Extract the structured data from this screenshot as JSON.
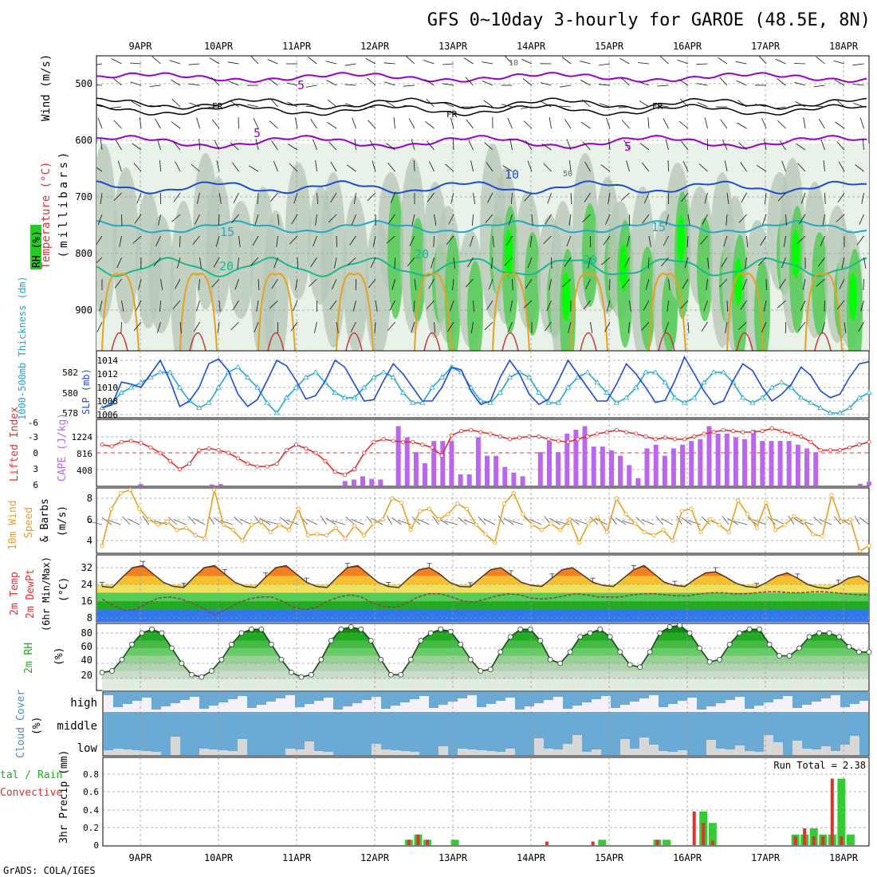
{
  "title": "GFS 0~10day 3-hourly for GAROE (48.5E, 8N)",
  "credit": "GrADS: COLA/IGES",
  "dates": [
    "9APR",
    "10APR",
    "11APR",
    "12APR",
    "13APR",
    "14APR",
    "15APR",
    "16APR",
    "17APR",
    "18APR"
  ],
  "colors": {
    "green": "#33cc33",
    "bright_green": "#00ff00",
    "purple": "#9900cc",
    "blue": "#1e4bd2",
    "cyan": "#22a8c8",
    "red": "#e03030",
    "orange": "#e8a020",
    "cape": "#bb66ee",
    "cloud": "#6aaad4",
    "grey": "#cccccc"
  },
  "panels": {
    "upper": {
      "ylabel_wind": "Wind (m/s)",
      "ylabel_temp": "Temperature (°C)",
      "ylabel_rh": "RH (%)",
      "ylabel_mb": "(millibars)",
      "ticks": [
        "500",
        "600",
        "700",
        "800",
        "900"
      ],
      "contour_labels": [
        "5",
        "5",
        "5",
        "FR",
        "FR",
        "FR",
        "10",
        "15",
        "15",
        "20",
        "20",
        "50",
        "10"
      ]
    },
    "slp": {
      "ylabel_left": "1000-500mb Thickness (dm)",
      "ylabel_right": "SLP (mb)",
      "ticks_left": [
        "582",
        "580",
        "578"
      ],
      "ticks_right": [
        "1014",
        "1012",
        "1010",
        "1008",
        "1006"
      ]
    },
    "cape": {
      "ylabel_left": "Lifted Index",
      "ylabel_right": "CAPE (J/kg)",
      "ticks_left": [
        "-6",
        "-3",
        "0",
        "3",
        "6"
      ],
      "ticks_right": [
        "1224",
        "816",
        "408"
      ]
    },
    "wind": {
      "ylabel": [
        "10m Wind",
        "Speed",
        "& Barbs",
        "(m/s)"
      ],
      "ticks": [
        "8",
        "6",
        "4"
      ]
    },
    "temp": {
      "ylabel": [
        "2m Temp",
        "2m DewPt",
        "(6hr Min/Max)",
        "(°C)"
      ],
      "ticks": [
        "32",
        "24",
        "16",
        "8"
      ]
    },
    "rh": {
      "ylabel": [
        "2m RH",
        "(%)"
      ],
      "ticks": [
        "80",
        "60",
        "40",
        "20"
      ]
    },
    "cloud": {
      "ylabel": [
        "Cloud Cover",
        "(%)"
      ],
      "layers": [
        "high",
        "middle",
        "low"
      ]
    },
    "precip": {
      "ylabel_left": [
        "tal / Rain",
        "Convective"
      ],
      "ylabel": "3hr Precip (mm)",
      "ticks": [
        "0.8",
        "0.6",
        "0.4",
        "0.2",
        "0"
      ],
      "run_total": "Run Total = 2.38"
    }
  },
  "chart_data": {
    "type": "meteogram",
    "x_dates": [
      "9APR",
      "10APR",
      "11APR",
      "12APR",
      "13APR",
      "14APR",
      "15APR",
      "16APR",
      "17APR",
      "18APR"
    ],
    "slp_mb": [
      1007.0,
      1007.4,
      1010.8,
      1010.5,
      1010.0,
      1012.0,
      1014.0,
      1011.0,
      1007.2,
      1008.0,
      1010.0,
      1013.5,
      1014.2,
      1012.5,
      1009.0,
      1007.2,
      1008.2,
      1011.0,
      1014.0,
      1013.2,
      1011.0,
      1008.3,
      1008.8,
      1011.0,
      1014.0,
      1013.0,
      1010.5,
      1008.0,
      1008.2,
      1011.0,
      1013.5,
      1012.0,
      1010.0,
      1008.0,
      1008.0,
      1010.0,
      1013.0,
      1012.6,
      1009.5,
      1007.5,
      1008.0,
      1011.5,
      1014.0,
      1012.0,
      1009.0,
      1007.5,
      1008.3,
      1011.0,
      1014.0,
      1012.0,
      1010.0,
      1008.0,
      1008.0,
      1010.5,
      1013.5,
      1012.0,
      1010.0,
      1007.8,
      1008.1,
      1011.0,
      1014.5,
      1012.0,
      1009.5,
      1007.5,
      1008.0,
      1011.0,
      1013.5,
      1012.5,
      1010.0,
      1008.0,
      1009.0,
      1010.5,
      1013.0,
      1011.8,
      1009.5,
      1008.5,
      1009.0,
      1011.5,
      1013.5,
      1013.8
    ],
    "thickness_dm": [
      578.5,
      579.0,
      580.0,
      580.5,
      581.0,
      581.5,
      582.0,
      582.0,
      580.5,
      579.2,
      578.5,
      579.0,
      580.5,
      582.0,
      582.5,
      581.5,
      580.5,
      579.0,
      578.0,
      579.5,
      580.5,
      581.5,
      582.0,
      581.0,
      580.0,
      579.5,
      579.5,
      580.5,
      581.5,
      582.0,
      581.5,
      580.0,
      579.0,
      579.0,
      580.5,
      581.5,
      582.5,
      582.0,
      580.5,
      579.2,
      579.0,
      580.0,
      581.5,
      582.0,
      581.5,
      580.0,
      579.0,
      579.0,
      580.5,
      581.5,
      582.0,
      581.0,
      580.0,
      579.0,
      579.5,
      580.5,
      582.0,
      582.0,
      581.0,
      579.5,
      579.0,
      579.5,
      581.0,
      582.0,
      582.0,
      581.0,
      579.5,
      579.0,
      579.5,
      580.5,
      581.0,
      580.5,
      579.5,
      579.0,
      578.5,
      578.0,
      578.0,
      578.5,
      579.5,
      580.0
    ],
    "lifted_index": [
      -1.5,
      -1.2,
      -2.0,
      -2.2,
      -1.8,
      -1.0,
      0.0,
      1.5,
      3.0,
      2.0,
      -0.5,
      -0.8,
      -0.5,
      0.0,
      1.0,
      2.0,
      2.5,
      2.5,
      2.0,
      -0.5,
      -1.5,
      -0.8,
      0.0,
      1.5,
      3.5,
      4.0,
      3.0,
      0.0,
      -2.0,
      -2.5,
      -2.2,
      -2.0,
      -2.0,
      -1.5,
      -1.0,
      0.5,
      -3.2,
      -4.0,
      -4.2,
      -3.8,
      -3.5,
      -3.0,
      -2.5,
      -2.8,
      -3.0,
      -3.0,
      -2.5,
      -2.2,
      -2.0,
      -2.5,
      -3.0,
      -3.5,
      -3.8,
      -4.2,
      -3.8,
      -3.5,
      -3.0,
      -2.5,
      -2.8,
      -2.5,
      -2.5,
      -3.0,
      -3.5,
      -3.8,
      -4.2,
      -4.0,
      -3.8,
      -3.8,
      -4.0,
      -4.5,
      -4.0,
      -3.5,
      -3.0,
      -2.0,
      -0.5,
      -0.5,
      -0.5,
      -1.0,
      -1.5,
      -2.0
    ],
    "cape_jkg": [
      0,
      0,
      0,
      0,
      40,
      0,
      0,
      0,
      0,
      0,
      0,
      0,
      30,
      40,
      0,
      0,
      0,
      0,
      0,
      0,
      0,
      0,
      0,
      0,
      0,
      0,
      0,
      120,
      160,
      250,
      180,
      160,
      0,
      1600,
      1300,
      900,
      600,
      1200,
      1200,
      1200,
      300,
      300,
      1300,
      800,
      800,
      500,
      350,
      250,
      0,
      900,
      1200,
      900,
      1400,
      1500,
      1600,
      1050,
      1050,
      950,
      800,
      550,
      200,
      1000,
      1100,
      800,
      1000,
      1100,
      1200,
      1250,
      1600,
      1400,
      1400,
      1300,
      1250,
      1500,
      1200,
      1200,
      1200,
      1200,
      1100,
      1000,
      900,
      0,
      0,
      0,
      0,
      50,
      100
    ],
    "wind10m_ms": [
      3.5,
      7.0,
      8.5,
      8.8,
      7.0,
      6.0,
      5.5,
      5.8,
      5.0,
      5.2,
      4.5,
      4.2,
      8.8,
      5.5,
      5.0,
      4.0,
      5.5,
      5.8,
      4.8,
      5.5,
      5.0,
      7.0,
      4.5,
      4.6,
      4.5,
      5.2,
      4.2,
      5.4,
      4.5,
      5.6,
      6.0,
      8.0,
      7.6,
      5.0,
      6.8,
      7.0,
      6.0,
      6.5,
      7.5,
      7.0,
      5.5,
      4.6,
      3.8,
      7.5,
      8.5,
      6.5,
      5.5,
      5.0,
      5.6,
      5.0,
      6.0,
      3.8,
      5.6,
      6.2,
      4.8,
      8.0,
      6.5,
      5.6,
      4.8,
      4.5,
      5.0,
      4.0,
      6.8,
      7.0,
      4.8,
      6.0,
      5.5,
      4.8,
      7.8,
      6.5,
      5.2,
      7.6,
      5.0,
      5.5,
      6.3,
      5.8,
      4.6,
      4.4,
      8.3,
      5.8,
      6.0,
      3.0,
      3.5
    ],
    "temp2m_c": [
      23.0,
      22.5,
      27.5,
      32.0,
      33.0,
      29.0,
      25.0,
      23.0,
      22.5,
      27.5,
      32.0,
      33.0,
      29.0,
      25.0,
      23.0,
      22.5,
      27.5,
      32.0,
      33.0,
      29.0,
      25.0,
      23.0,
      22.5,
      27.5,
      32.0,
      33.0,
      29.0,
      25.0,
      23.0,
      22.5,
      27.0,
      31.0,
      32.0,
      29.0,
      25.0,
      23.0,
      22.8,
      27.0,
      31.0,
      32.0,
      28.5,
      25.0,
      23.5,
      23.0,
      27.0,
      31.0,
      32.0,
      28.5,
      25.0,
      23.5,
      23.0,
      27.0,
      31.0,
      33.0,
      29.0,
      25.0,
      23.5,
      23.0,
      26.5,
      29.5,
      30.0,
      27.5,
      24.5,
      23.0,
      22.5,
      25.0,
      28.0,
      29.5,
      27.0,
      24.0,
      22.5,
      22.0,
      24.0,
      27.0,
      28.0,
      25.0
    ],
    "dewpt2m_c": [
      17.0,
      14.0,
      11.5,
      12.0,
      15.0,
      17.5,
      18.0,
      17.0,
      15.0,
      12.5,
      9.5,
      12.0,
      15.0,
      17.0,
      18.0,
      18.0,
      16.0,
      13.0,
      12.0,
      13.0,
      16.0,
      18.0,
      19.0,
      18.0,
      15.0,
      13.5,
      13.0,
      15.0,
      18.0,
      19.5,
      19.5,
      18.0,
      16.0,
      15.5,
      17.0,
      18.5,
      19.5,
      19.0,
      17.5,
      17.0,
      17.5,
      18.5,
      19.5,
      19.0,
      18.0,
      18.0,
      18.0,
      19.0,
      19.5,
      19.5,
      19.0,
      18.5,
      18.5,
      19.5,
      20.0,
      20.0,
      19.5,
      19.5,
      20.0,
      20.5,
      20.5,
      20.0,
      20.0,
      20.5,
      20.5,
      20.0,
      19.5,
      19.0,
      19.0
    ],
    "rh2m_pct": [
      28,
      30,
      45,
      65,
      80,
      85,
      80,
      60,
      40,
      25,
      22,
      30,
      45,
      65,
      80,
      85,
      85,
      65,
      45,
      28,
      22,
      25,
      45,
      70,
      85,
      88,
      85,
      70,
      45,
      25,
      25,
      45,
      70,
      80,
      85,
      82,
      65,
      45,
      30,
      32,
      55,
      75,
      85,
      85,
      70,
      45,
      40,
      55,
      75,
      80,
      85,
      75,
      55,
      38,
      35,
      55,
      80,
      88,
      90,
      80,
      60,
      42,
      45,
      65,
      80,
      85,
      85,
      65,
      50,
      50,
      60,
      75,
      80,
      80,
      75,
      62,
      55,
      55
    ],
    "precip_total_mm": [
      0,
      0,
      0,
      0,
      0,
      0,
      0,
      0,
      0,
      0,
      0,
      0,
      0,
      0,
      0,
      0,
      0,
      0,
      0,
      0,
      0,
      0,
      0,
      0,
      0,
      0,
      0,
      0,
      0,
      0,
      0,
      0,
      0,
      0.06,
      0.12,
      0.06,
      0,
      0,
      0.06,
      0,
      0,
      0,
      0,
      0,
      0,
      0,
      0,
      0,
      0,
      0,
      0,
      0,
      0,
      0,
      0.06,
      0,
      0,
      0,
      0,
      0,
      0.06,
      0.06,
      0,
      0,
      0,
      0.38,
      0.25,
      0,
      0,
      0,
      0,
      0,
      0,
      0,
      0,
      0.12,
      0.12,
      0.19,
      0.12,
      0.12,
      0.75,
      0.12,
      0,
      0
    ],
    "precip_conv_mm": [
      0,
      0,
      0,
      0,
      0,
      0,
      0,
      0,
      0,
      0,
      0,
      0,
      0,
      0,
      0,
      0,
      0,
      0,
      0,
      0,
      0,
      0,
      0,
      0,
      0,
      0,
      0,
      0,
      0,
      0,
      0,
      0,
      0,
      0.06,
      0.12,
      0.06,
      0,
      0,
      0,
      0,
      0,
      0,
      0,
      0,
      0,
      0,
      0,
      0,
      0.04,
      0,
      0,
      0,
      0,
      0.04,
      0,
      0,
      0,
      0,
      0,
      0,
      0.06,
      0,
      0,
      0,
      0.38,
      0.25,
      0.05,
      0,
      0,
      0,
      0,
      0,
      0,
      0,
      0,
      0.1,
      0.19,
      0.1,
      0.1,
      0.75,
      0.1,
      0,
      0
    ]
  }
}
